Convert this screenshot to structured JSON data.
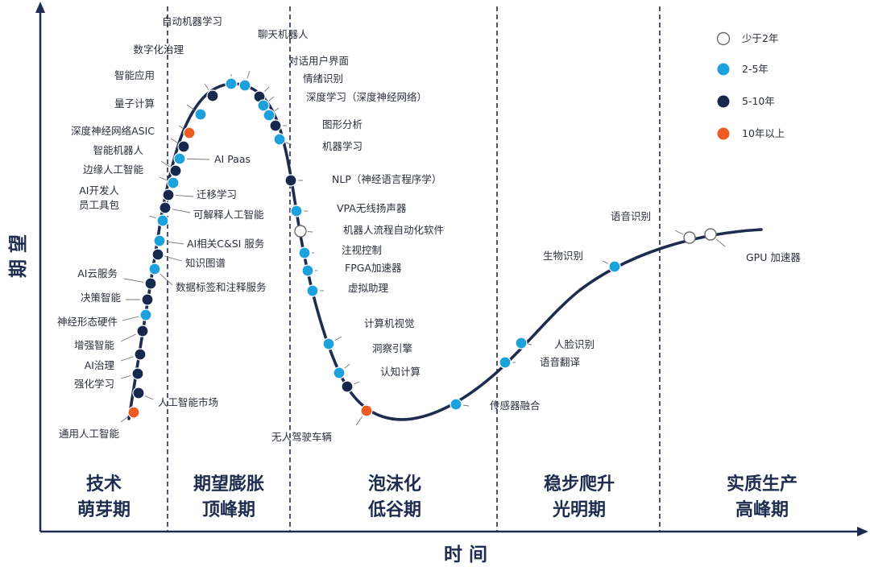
{
  "axes": {
    "x_label": "时 间",
    "y_label": "期 望"
  },
  "phases": [
    {
      "line1": "技术",
      "line2": "萌芽期"
    },
    {
      "line1": "期望膨胀",
      "line2": "顶峰期"
    },
    {
      "line1": "泡沫化",
      "line2": "低谷期"
    },
    {
      "line1": "稳步爬升",
      "line2": "光明期"
    },
    {
      "line1": "实质生产",
      "line2": "高峰期"
    }
  ],
  "legend": [
    {
      "label": "少于2年",
      "color": "#ffffff"
    },
    {
      "label": "2-5年",
      "color": "#1da1dc"
    },
    {
      "label": "5-10年",
      "color": "#17284d"
    },
    {
      "label": "10年以上",
      "color": "#ee5a24"
    }
  ],
  "colors": {
    "curve": "#1d2c4f",
    "axis": "#1d2c4f"
  },
  "technologies": [
    {
      "name": "通用人工智能",
      "category": "10年以上"
    },
    {
      "name": "人工智能市场",
      "category": "5-10年"
    },
    {
      "name": "强化学习",
      "category": "5-10年"
    },
    {
      "name": "AI治理",
      "category": "5-10年"
    },
    {
      "name": "增强智能",
      "category": "5-10年"
    },
    {
      "name": "神经形态硬件",
      "category": "2-5年"
    },
    {
      "name": "决策智能",
      "category": "5-10年"
    },
    {
      "name": "AI云服务",
      "category": "5-10年"
    },
    {
      "name": "数据标签和注释服务",
      "category": "2-5年"
    },
    {
      "name": "知识图谱",
      "category": "5-10年"
    },
    {
      "name": "AI相关C&SI 服务",
      "category": "2-5年"
    },
    {
      "name": "AI开发人员工具包",
      "category": "2-5年"
    },
    {
      "name": "可解释人工智能",
      "category": "5-10年"
    },
    {
      "name": "迁移学习",
      "category": "5-10年"
    },
    {
      "name": "边缘人工智能",
      "category": "2-5年"
    },
    {
      "name": "智能机器人",
      "category": "5-10年"
    },
    {
      "name": "AI Paas",
      "category": "2-5年"
    },
    {
      "name": "深度神经网络ASIC",
      "category": "5-10年"
    },
    {
      "name": "量子计算",
      "category": "10年以上"
    },
    {
      "name": "智能应用",
      "category": "2-5年"
    },
    {
      "name": "数字化治理",
      "category": "5-10年"
    },
    {
      "name": "自动机器学习",
      "category": "2-5年"
    },
    {
      "name": "聊天机器人",
      "category": "2-5年"
    },
    {
      "name": "对话用户界面",
      "category": "5-10年"
    },
    {
      "name": "情绪识别",
      "category": "2-5年"
    },
    {
      "name": "深度学习（深度神经网络）",
      "category": "2-5年"
    },
    {
      "name": "图形分析",
      "category": "5-10年"
    },
    {
      "name": "机器学习",
      "category": "2-5年"
    },
    {
      "name": "NLP（神经语言程序学）",
      "category": "5-10年"
    },
    {
      "name": "VPA无线扬声器",
      "category": "2-5年"
    },
    {
      "name": "机器人流程自动化软件",
      "category": "少于2年"
    },
    {
      "name": "注视控制",
      "category": "2-5年"
    },
    {
      "name": "FPGA加速器",
      "category": "2-5年"
    },
    {
      "name": "虚拟助理",
      "category": "2-5年"
    },
    {
      "name": "计算机视觉",
      "category": "2-5年"
    },
    {
      "name": "洞察引擎",
      "category": "2-5年"
    },
    {
      "name": "认知计算",
      "category": "5-10年"
    },
    {
      "name": "无人驾驶车辆",
      "category": "10年以上"
    },
    {
      "name": "传感器融合",
      "category": "2-5年"
    },
    {
      "name": "语音翻译",
      "category": "2-5年"
    },
    {
      "name": "人脸识别",
      "category": "2-5年"
    },
    {
      "name": "生物识别",
      "category": "2-5年"
    },
    {
      "name": "语音识别",
      "category": "少于2年"
    },
    {
      "name": "GPU 加速器",
      "category": "少于2年"
    }
  ]
}
